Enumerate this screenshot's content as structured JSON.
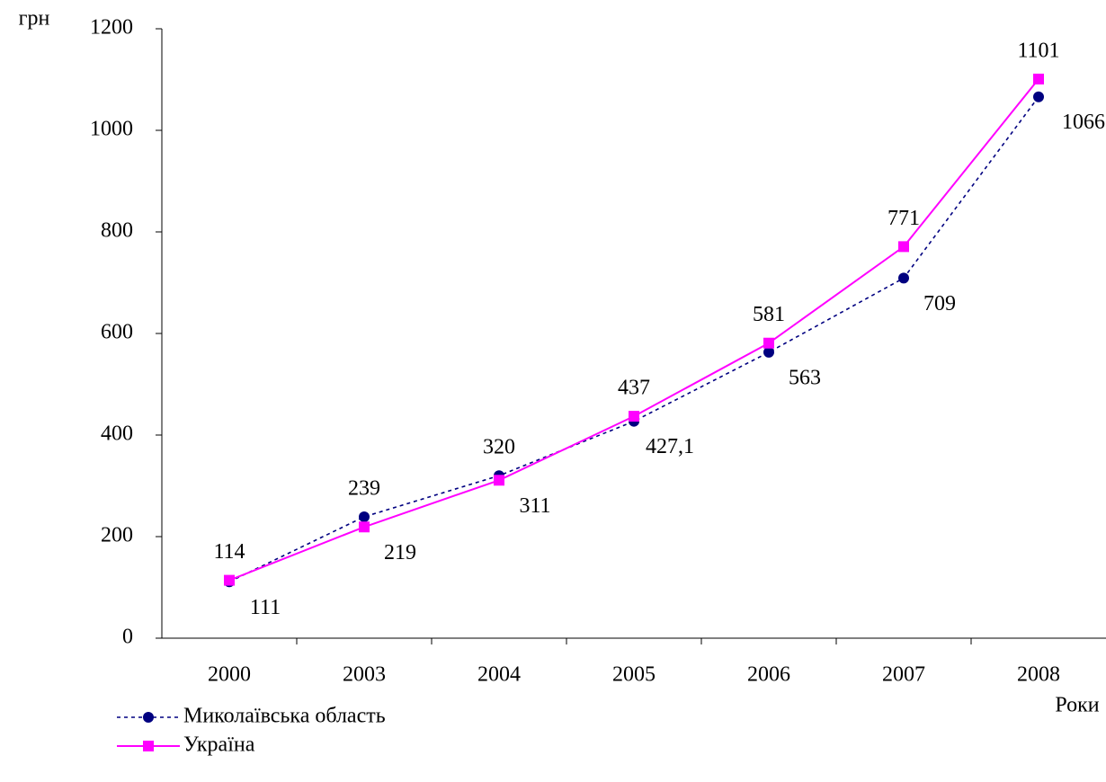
{
  "chart_data": {
    "type": "line",
    "y_label": "грн",
    "x_label": "Роки",
    "categories": [
      "2000",
      "2003",
      "2004",
      "2005",
      "2006",
      "2007",
      "2008"
    ],
    "series": [
      {
        "name": "Миколаївська область",
        "color": "#000080",
        "marker": "circle",
        "dashed": true,
        "values": [
          111,
          239,
          320,
          427.1,
          563,
          709,
          1066
        ],
        "value_labels": [
          "111",
          "239",
          "320",
          "427,1",
          "563",
          "709",
          "1066"
        ]
      },
      {
        "name": "Україна",
        "color": "#ff00ff",
        "marker": "square",
        "dashed": false,
        "values": [
          114,
          219,
          311,
          437,
          581,
          771,
          1101
        ]
      }
    ],
    "ylim": [
      0,
      1200
    ],
    "yticks": [
      0,
      200,
      400,
      600,
      800,
      1000,
      1200
    ],
    "grid": false,
    "legend": "bottom-left"
  }
}
